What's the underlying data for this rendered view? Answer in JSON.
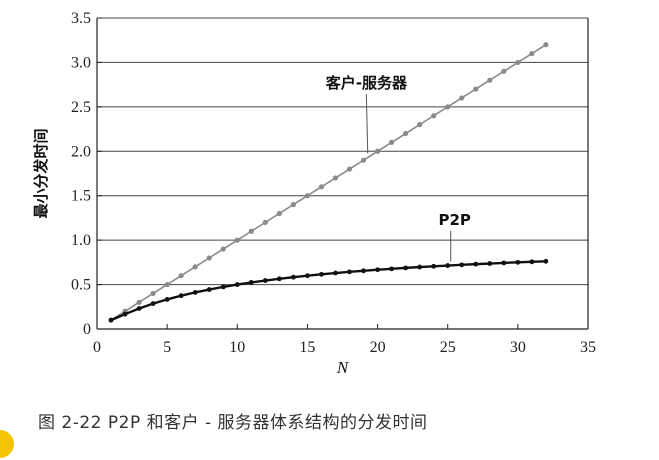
{
  "caption": "图 2-22   P2P 和客户 - 服务器体系结构的分发时间",
  "colors": {
    "client_server": "#8a8a8a",
    "p2p": "#111111",
    "grid": "#444444",
    "accent_mark": "#f4c400"
  },
  "chart_data": {
    "type": "line",
    "xlabel": "N",
    "ylabel": "最小分发时间",
    "xlim": [
      0,
      35
    ],
    "ylim": [
      0,
      3.5
    ],
    "x_ticks": [
      "0",
      "5",
      "10",
      "15",
      "20",
      "25",
      "30",
      "35"
    ],
    "y_ticks": [
      "0",
      "0.5",
      "1.0",
      "1.5",
      "2.0",
      "2.5",
      "3.0",
      "3.5"
    ],
    "grid": "horizontal",
    "x": [
      1,
      2,
      3,
      4,
      5,
      6,
      7,
      8,
      9,
      10,
      11,
      12,
      13,
      14,
      15,
      16,
      17,
      18,
      19,
      20,
      21,
      22,
      23,
      24,
      25,
      26,
      27,
      28,
      29,
      30,
      31,
      32
    ],
    "series": [
      {
        "name": "客户-服务器",
        "values": [
          0.1,
          0.2,
          0.3,
          0.4,
          0.5,
          0.6,
          0.7,
          0.8,
          0.9,
          1.0,
          1.1,
          1.2,
          1.3,
          1.4,
          1.5,
          1.6,
          1.7,
          1.8,
          1.9,
          2.0,
          2.1,
          2.2,
          2.3,
          2.4,
          2.5,
          2.6,
          2.7,
          2.8,
          2.9,
          3.0,
          3.1,
          3.2
        ]
      },
      {
        "name": "P2P",
        "values": [
          0.1,
          0.167,
          0.231,
          0.286,
          0.333,
          0.375,
          0.412,
          0.444,
          0.474,
          0.5,
          0.524,
          0.545,
          0.565,
          0.583,
          0.6,
          0.615,
          0.63,
          0.643,
          0.655,
          0.667,
          0.677,
          0.688,
          0.697,
          0.706,
          0.714,
          0.722,
          0.73,
          0.737,
          0.744,
          0.75,
          0.756,
          0.762
        ]
      }
    ]
  }
}
